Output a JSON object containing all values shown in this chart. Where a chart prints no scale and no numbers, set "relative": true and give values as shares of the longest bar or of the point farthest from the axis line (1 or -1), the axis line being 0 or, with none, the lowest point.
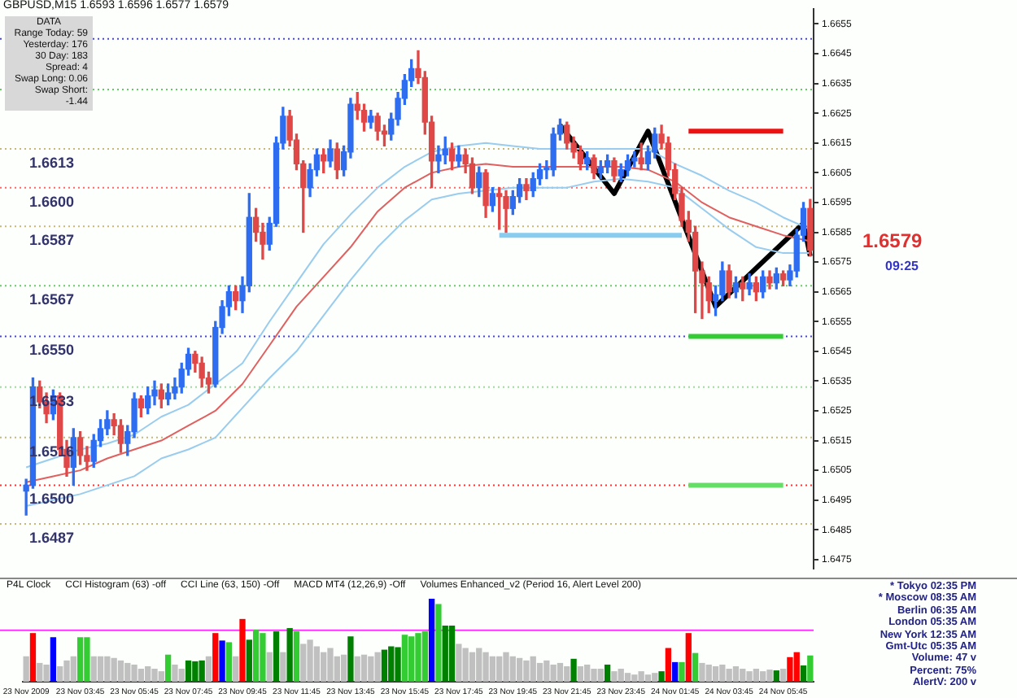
{
  "chart_data": [
    {
      "type": "candlestick",
      "title": "GBPUSD,M15 1.6593 1.6596 1.6577 1.6579",
      "categories": [
        null,
        null,
        null,
        null,
        null,
        null,
        null,
        null,
        null,
        null,
        null,
        null,
        null,
        null,
        null,
        null,
        null,
        null,
        null,
        null,
        null,
        null,
        null,
        null,
        null,
        null,
        null,
        null,
        null,
        null,
        null,
        null,
        null,
        null,
        null,
        null,
        null,
        null,
        null,
        null,
        null,
        null,
        null,
        null,
        null,
        null,
        null,
        null,
        null,
        null,
        null,
        null,
        null,
        null,
        null,
        null,
        null,
        null,
        null,
        null,
        null,
        null,
        null,
        null,
        null,
        null,
        null,
        null,
        null,
        null,
        null,
        null,
        null,
        null,
        null,
        null,
        null,
        null,
        null,
        null,
        null,
        null,
        null,
        null,
        null,
        null,
        null,
        null,
        null,
        null,
        null,
        null,
        null,
        null,
        null,
        null,
        null,
        null,
        null,
        null,
        null,
        null,
        null,
        null,
        null,
        null,
        null,
        null,
        null,
        null,
        null,
        null,
        null,
        null,
        null,
        null,
        null
      ],
      "ohlc": [
        [
          1.6498,
          1.6502,
          1.649,
          1.65
        ],
        [
          1.65,
          1.6536,
          1.6499,
          1.6533
        ],
        [
          1.6533,
          1.6535,
          1.6526,
          1.6528
        ],
        [
          1.6528,
          1.6531,
          1.6521,
          1.6524
        ],
        [
          1.6524,
          1.6532,
          1.6522,
          1.653
        ],
        [
          1.653,
          1.6531,
          1.651,
          1.6512
        ],
        [
          1.6512,
          1.6515,
          1.6503,
          1.6506
        ],
        [
          1.6506,
          1.6519,
          1.65,
          1.6516
        ],
        [
          1.6516,
          1.6518,
          1.6507,
          1.651
        ],
        [
          1.651,
          1.6513,
          1.6505,
          1.6508
        ],
        [
          1.6508,
          1.6517,
          1.6506,
          1.6515
        ],
        [
          1.6515,
          1.6522,
          1.6513,
          1.6519
        ],
        [
          1.6519,
          1.6525,
          1.6517,
          1.6522
        ],
        [
          1.6522,
          1.6524,
          1.6517,
          1.652
        ],
        [
          1.652,
          1.6522,
          1.6511,
          1.6514
        ],
        [
          1.6514,
          1.652,
          1.651,
          1.6518
        ],
        [
          1.6518,
          1.6531,
          1.6516,
          1.6529
        ],
        [
          1.6529,
          1.653,
          1.6523,
          1.6526
        ],
        [
          1.6526,
          1.6533,
          1.6524,
          1.653
        ],
        [
          1.653,
          1.6535,
          1.6527,
          1.6532
        ],
        [
          1.6532,
          1.6534,
          1.6526,
          1.6529
        ],
        [
          1.6529,
          1.6534,
          1.6527,
          1.6531
        ],
        [
          1.6531,
          1.6536,
          1.6529,
          1.6533
        ],
        [
          1.6533,
          1.6541,
          1.6531,
          1.6539
        ],
        [
          1.6539,
          1.6546,
          1.6537,
          1.6544
        ],
        [
          1.6544,
          1.6545,
          1.6538,
          1.6541
        ],
        [
          1.6541,
          1.6543,
          1.6533,
          1.6536
        ],
        [
          1.6536,
          1.6538,
          1.6531,
          1.6534
        ],
        [
          1.6534,
          1.6555,
          1.6533,
          1.6553
        ],
        [
          1.6553,
          1.6562,
          1.6551,
          1.656
        ],
        [
          1.656,
          1.6567,
          1.6557,
          1.6565
        ],
        [
          1.6565,
          1.6567,
          1.6559,
          1.6562
        ],
        [
          1.6562,
          1.657,
          1.6558,
          1.6567
        ],
        [
          1.6567,
          1.6598,
          1.6565,
          1.659
        ],
        [
          1.659,
          1.6593,
          1.6582,
          1.6585
        ],
        [
          1.6585,
          1.6588,
          1.6576,
          1.6581
        ],
        [
          1.6581,
          1.659,
          1.6579,
          1.6588
        ],
        [
          1.6588,
          1.6617,
          1.6587,
          1.6615
        ],
        [
          1.6615,
          1.6627,
          1.6613,
          1.6624
        ],
        [
          1.6624,
          1.6626,
          1.6614,
          1.6616
        ],
        [
          1.6616,
          1.6618,
          1.6606,
          1.6608
        ],
        [
          1.6608,
          1.6609,
          1.6585,
          1.66
        ],
        [
          1.66,
          1.6608,
          1.6597,
          1.6606
        ],
        [
          1.6606,
          1.6613,
          1.6604,
          1.6611
        ],
        [
          1.6611,
          1.6613,
          1.6605,
          1.6609
        ],
        [
          1.6609,
          1.6616,
          1.6607,
          1.6613
        ],
        [
          1.6613,
          1.6615,
          1.6603,
          1.6606
        ],
        [
          1.6606,
          1.6614,
          1.6604,
          1.6612
        ],
        [
          1.6612,
          1.663,
          1.661,
          1.6628
        ],
        [
          1.6628,
          1.6632,
          1.6623,
          1.6626
        ],
        [
          1.6626,
          1.6628,
          1.6619,
          1.6622
        ],
        [
          1.6622,
          1.6626,
          1.662,
          1.6624
        ],
        [
          1.6624,
          1.6625,
          1.6616,
          1.6619
        ],
        [
          1.6619,
          1.6621,
          1.6614,
          1.6618
        ],
        [
          1.6618,
          1.6625,
          1.6616,
          1.6623
        ],
        [
          1.6623,
          1.6632,
          1.6621,
          1.663
        ],
        [
          1.663,
          1.6638,
          1.6628,
          1.6636
        ],
        [
          1.6636,
          1.6643,
          1.6634,
          1.664
        ],
        [
          1.664,
          1.6646,
          1.6635,
          1.6637
        ],
        [
          1.6637,
          1.6639,
          1.6618,
          1.6622
        ],
        [
          1.6622,
          1.6624,
          1.66,
          1.6609
        ],
        [
          1.6609,
          1.6614,
          1.6605,
          1.6611
        ],
        [
          1.6611,
          1.6617,
          1.6608,
          1.6613
        ],
        [
          1.6613,
          1.6615,
          1.6606,
          1.6609
        ],
        [
          1.6609,
          1.6614,
          1.6607,
          1.6611
        ],
        [
          1.6611,
          1.6613,
          1.6605,
          1.6608
        ],
        [
          1.6608,
          1.661,
          1.6598,
          1.66
        ],
        [
          1.66,
          1.6607,
          1.6597,
          1.6605
        ],
        [
          1.6605,
          1.6606,
          1.659,
          1.6594
        ],
        [
          1.6594,
          1.66,
          1.6592,
          1.6598
        ],
        [
          1.6598,
          1.66,
          1.6586,
          1.6597
        ],
        [
          1.6597,
          1.6599,
          1.6585,
          1.6593
        ],
        [
          1.6593,
          1.6599,
          1.6591,
          1.6597
        ],
        [
          1.6597,
          1.6603,
          1.6595,
          1.6601
        ],
        [
          1.6601,
          1.6603,
          1.6596,
          1.6599
        ],
        [
          1.6599,
          1.6605,
          1.6597,
          1.6603
        ],
        [
          1.6603,
          1.6608,
          1.6601,
          1.6606
        ],
        [
          1.6606,
          1.6609,
          1.6603,
          1.6606
        ],
        [
          1.6606,
          1.662,
          1.6604,
          1.6618
        ],
        [
          1.6618,
          1.6623,
          1.6616,
          1.6621
        ],
        [
          1.6621,
          1.6622,
          1.6613,
          1.6615
        ],
        [
          1.6615,
          1.6617,
          1.661,
          1.6612
        ],
        [
          1.6612,
          1.6614,
          1.6606,
          1.6608
        ],
        [
          1.6608,
          1.6612,
          1.6606,
          1.661
        ],
        [
          1.661,
          1.6611,
          1.6603,
          1.6605
        ],
        [
          1.6605,
          1.6609,
          1.6603,
          1.6607
        ],
        [
          1.6607,
          1.6611,
          1.6605,
          1.6609
        ],
        [
          1.6609,
          1.661,
          1.6602,
          1.6604
        ],
        [
          1.6604,
          1.6608,
          1.6602,
          1.6606
        ],
        [
          1.6606,
          1.6611,
          1.6604,
          1.6609
        ],
        [
          1.6609,
          1.6612,
          1.6607,
          1.661
        ],
        [
          1.661,
          1.6615,
          1.6606,
          1.6608
        ],
        [
          1.6608,
          1.6614,
          1.6606,
          1.6612
        ],
        [
          1.6612,
          1.662,
          1.661,
          1.6618
        ],
        [
          1.6618,
          1.6621,
          1.6613,
          1.6615
        ],
        [
          1.6615,
          1.6617,
          1.6604,
          1.6606
        ],
        [
          1.6606,
          1.6608,
          1.6596,
          1.6598
        ],
        [
          1.6598,
          1.66,
          1.6587,
          1.6589
        ],
        [
          1.6589,
          1.6592,
          1.6582,
          1.6585
        ],
        [
          1.6585,
          1.6587,
          1.6558,
          1.6572
        ],
        [
          1.6572,
          1.6575,
          1.6556,
          1.6568
        ],
        [
          1.6568,
          1.657,
          1.6558,
          1.6562
        ],
        [
          1.6562,
          1.6567,
          1.6557,
          1.6564
        ],
        [
          1.6564,
          1.6575,
          1.6562,
          1.6572
        ],
        [
          1.6572,
          1.6574,
          1.6563,
          1.6565
        ],
        [
          1.6565,
          1.657,
          1.6563,
          1.6568
        ],
        [
          1.6568,
          1.657,
          1.6562,
          1.6566
        ],
        [
          1.6566,
          1.6571,
          1.6564,
          1.6568
        ],
        [
          1.6568,
          1.657,
          1.6562,
          1.6565
        ],
        [
          1.6565,
          1.6572,
          1.6563,
          1.657
        ],
        [
          1.657,
          1.6572,
          1.6566,
          1.6568
        ],
        [
          1.6568,
          1.6573,
          1.6566,
          1.6571
        ],
        [
          1.6571,
          1.6572,
          1.6567,
          1.6569
        ],
        [
          1.6569,
          1.6574,
          1.6567,
          1.6572
        ],
        [
          1.6572,
          1.6586,
          1.657,
          1.6584
        ],
        [
          1.6584,
          1.6595,
          1.6582,
          1.6593
        ],
        [
          1.6593,
          1.6596,
          1.6577,
          1.6579
        ]
      ],
      "series": [
        {
          "type": "line",
          "color": "#99ccee",
          "values": [
            1.6506,
            null,
            null,
            null,
            1.6509,
            null,
            null,
            null,
            1.6512,
            null,
            null,
            null,
            1.6514,
            null,
            null,
            null,
            1.6517,
            null,
            null,
            null,
            1.6523,
            null,
            null,
            null,
            1.6527,
            null,
            null,
            null,
            1.6534,
            null,
            null,
            null,
            1.6541,
            null,
            null,
            null,
            1.6555,
            null,
            null,
            null,
            1.6568,
            null,
            null,
            null,
            1.6581,
            null,
            null,
            null,
            1.6591,
            null,
            null,
            null,
            1.66,
            null,
            null,
            null,
            1.6607,
            null,
            null,
            null,
            1.6612,
            null,
            null,
            null,
            1.6614,
            null,
            null,
            null,
            1.6615,
            null,
            null,
            null,
            1.6614,
            null,
            null,
            null,
            1.6613,
            null,
            null,
            null,
            1.6613,
            null,
            null,
            null,
            1.6613,
            null,
            null,
            null,
            1.6613,
            null,
            null,
            null,
            1.6613,
            null,
            null,
            null,
            1.6608,
            null,
            null,
            null,
            1.6604,
            null,
            null,
            null,
            1.6599,
            null,
            null,
            null,
            1.6595,
            null,
            null,
            null,
            1.659,
            null,
            null,
            null,
            1.6586
          ]
        },
        {
          "type": "line",
          "color": "#e06060",
          "values": [
            1.6501,
            null,
            null,
            null,
            1.6503,
            null,
            null,
            null,
            1.6505,
            null,
            null,
            null,
            1.6509,
            null,
            null,
            null,
            1.6512,
            null,
            null,
            null,
            1.6515,
            null,
            null,
            null,
            1.652,
            null,
            null,
            null,
            1.6525,
            null,
            null,
            null,
            1.6534,
            null,
            null,
            null,
            1.6547,
            null,
            null,
            null,
            1.656,
            null,
            null,
            null,
            1.657,
            null,
            null,
            null,
            1.658,
            null,
            null,
            null,
            1.6592,
            null,
            null,
            null,
            1.66,
            null,
            null,
            null,
            1.6605,
            null,
            null,
            null,
            1.6607,
            null,
            null,
            null,
            1.6608,
            null,
            null,
            null,
            1.6607,
            null,
            null,
            null,
            1.6607,
            null,
            null,
            null,
            1.6607,
            null,
            null,
            null,
            1.6607,
            null,
            null,
            null,
            1.6607,
            null,
            null,
            null,
            1.6606,
            null,
            null,
            null,
            1.6602,
            null,
            null,
            null,
            1.6595,
            null,
            null,
            null,
            1.659,
            null,
            null,
            null,
            1.6587,
            null,
            null,
            null,
            1.6584,
            null,
            null,
            null,
            1.6582
          ]
        },
        {
          "type": "line",
          "color": "#99ccee",
          "values": [
            1.6493,
            null,
            null,
            null,
            1.6495,
            null,
            null,
            null,
            1.6497,
            null,
            null,
            null,
            1.65,
            null,
            null,
            null,
            1.6503,
            null,
            null,
            null,
            1.6509,
            null,
            null,
            null,
            1.6512,
            null,
            null,
            null,
            1.6516,
            null,
            null,
            null,
            1.6526,
            null,
            null,
            null,
            1.6536,
            null,
            null,
            null,
            1.6545,
            null,
            null,
            null,
            1.6557,
            null,
            null,
            null,
            1.6569,
            null,
            null,
            null,
            1.658,
            null,
            null,
            null,
            1.6589,
            null,
            null,
            null,
            1.6596,
            null,
            null,
            null,
            1.6598,
            null,
            null,
            null,
            1.6599,
            null,
            null,
            null,
            1.66,
            null,
            null,
            null,
            1.66,
            null,
            null,
            null,
            1.66,
            null,
            null,
            null,
            1.6602,
            null,
            null,
            null,
            1.6603,
            null,
            null,
            null,
            1.6602,
            null,
            null,
            null,
            1.66,
            null,
            null,
            null,
            1.6593,
            null,
            null,
            null,
            1.6586,
            null,
            null,
            null,
            1.658,
            null,
            null,
            null,
            1.6578,
            null,
            null,
            null,
            1.6578
          ]
        },
        {
          "type": "line",
          "color": "#000000",
          "values": [
            null,
            null,
            null,
            null,
            null,
            null,
            null,
            null,
            null,
            null,
            null,
            null,
            null,
            null,
            null,
            null,
            null,
            null,
            null,
            null,
            null,
            null,
            null,
            null,
            null,
            null,
            null,
            null,
            null,
            null,
            null,
            null,
            null,
            null,
            null,
            null,
            null,
            null,
            null,
            null,
            null,
            null,
            null,
            null,
            null,
            null,
            null,
            null,
            null,
            null,
            null,
            null,
            null,
            null,
            null,
            null,
            null,
            null,
            null,
            null,
            null,
            null,
            null,
            null,
            null,
            null,
            null,
            null,
            null,
            null,
            null,
            null,
            null,
            null,
            null,
            null,
            null,
            null,
            null,
            1.6621,
            null,
            null,
            null,
            null,
            null,
            null,
            null,
            1.6598,
            null,
            null,
            null,
            null,
            1.6619,
            null,
            null,
            null,
            null,
            null,
            null,
            null,
            null,
            null,
            1.656,
            null,
            null,
            null,
            null,
            null,
            null,
            null,
            null,
            null,
            null,
            null,
            null,
            1.6588,
            1.6577
          ]
        },
        {
          "type": "line",
          "color": "#ee1111",
          "values": [
            null,
            null,
            null,
            null,
            null,
            null,
            null,
            null,
            null,
            null,
            null,
            null,
            null,
            null,
            null,
            null,
            null,
            null,
            null,
            null,
            null,
            null,
            null,
            null,
            null,
            null,
            null,
            null,
            null,
            null,
            null,
            null,
            null,
            null,
            null,
            null,
            null,
            null,
            null,
            null,
            null,
            null,
            null,
            null,
            null,
            null,
            null,
            null,
            null,
            null,
            null,
            null,
            null,
            null,
            null,
            null,
            null,
            null,
            null,
            null,
            null,
            null,
            null,
            null,
            null,
            null,
            null,
            null,
            null,
            null,
            null,
            null,
            null,
            null,
            null,
            null,
            null,
            null,
            null,
            null,
            null,
            null,
            null,
            null,
            null,
            null,
            null,
            null,
            null,
            null,
            null,
            null,
            null,
            null,
            null,
            null,
            null,
            null,
            1.6619,
            null,
            null,
            null,
            null,
            null,
            null,
            null,
            null,
            null,
            null,
            null,
            null,
            null,
            1.6619,
            null,
            null,
            null,
            null
          ]
        },
        {
          "type": "line",
          "color": "#33cc33",
          "values": [
            null,
            null,
            null,
            null,
            null,
            null,
            null,
            null,
            null,
            null,
            null,
            null,
            null,
            null,
            null,
            null,
            null,
            null,
            null,
            null,
            null,
            null,
            null,
            null,
            null,
            null,
            null,
            null,
            null,
            null,
            null,
            null,
            null,
            null,
            null,
            null,
            null,
            null,
            null,
            null,
            null,
            null,
            null,
            null,
            null,
            null,
            null,
            null,
            null,
            null,
            null,
            null,
            null,
            null,
            null,
            null,
            null,
            null,
            null,
            null,
            null,
            null,
            null,
            null,
            null,
            null,
            null,
            null,
            null,
            null,
            null,
            null,
            null,
            null,
            null,
            null,
            null,
            null,
            null,
            null,
            null,
            null,
            null,
            null,
            null,
            null,
            null,
            null,
            null,
            null,
            null,
            null,
            null,
            null,
            null,
            null,
            null,
            null,
            1.655,
            null,
            null,
            null,
            null,
            null,
            null,
            null,
            null,
            null,
            null,
            null,
            null,
            null,
            1.655,
            null,
            null,
            null,
            null
          ]
        },
        {
          "type": "line",
          "color": "#66dd66",
          "values": [
            null,
            null,
            null,
            null,
            null,
            null,
            null,
            null,
            null,
            null,
            null,
            null,
            null,
            null,
            null,
            null,
            null,
            null,
            null,
            null,
            null,
            null,
            null,
            null,
            null,
            null,
            null,
            null,
            null,
            null,
            null,
            null,
            null,
            null,
            null,
            null,
            null,
            null,
            null,
            null,
            null,
            null,
            null,
            null,
            null,
            null,
            null,
            null,
            null,
            null,
            null,
            null,
            null,
            null,
            null,
            null,
            null,
            null,
            null,
            null,
            null,
            null,
            null,
            null,
            null,
            null,
            null,
            null,
            null,
            null,
            null,
            null,
            null,
            null,
            null,
            null,
            null,
            null,
            null,
            null,
            null,
            null,
            null,
            null,
            null,
            null,
            null,
            null,
            null,
            null,
            null,
            null,
            null,
            null,
            null,
            null,
            null,
            null,
            1.65,
            null,
            null,
            null,
            null,
            null,
            null,
            null,
            null,
            null,
            null,
            null,
            null,
            null,
            1.65,
            null,
            null,
            null,
            null
          ]
        },
        {
          "type": "line",
          "color": "#88ccf0",
          "values": [
            null,
            null,
            null,
            null,
            null,
            null,
            null,
            null,
            null,
            null,
            null,
            null,
            null,
            null,
            null,
            null,
            null,
            null,
            null,
            null,
            null,
            null,
            null,
            null,
            null,
            null,
            null,
            null,
            null,
            null,
            null,
            null,
            null,
            null,
            null,
            null,
            null,
            null,
            null,
            null,
            null,
            null,
            null,
            null,
            null,
            null,
            null,
            null,
            null,
            null,
            null,
            null,
            null,
            null,
            null,
            null,
            null,
            null,
            null,
            null,
            null,
            null,
            null,
            null,
            null,
            null,
            null,
            null,
            null,
            null,
            1.6584,
            null,
            null,
            null,
            null,
            null,
            null,
            null,
            null,
            null,
            null,
            null,
            null,
            null,
            null,
            null,
            null,
            null,
            null,
            null,
            null,
            null,
            null,
            null,
            null,
            null,
            null,
            1.6584,
            null,
            null,
            null,
            null,
            null,
            null,
            null,
            null,
            null,
            null,
            null,
            null,
            null,
            null,
            null,
            null,
            null,
            null,
            null
          ]
        }
      ],
      "ylim": [
        1.6472,
        1.666
      ],
      "yticks": [
        1.6655,
        1.6645,
        1.6635,
        1.6625,
        1.6615,
        1.6605,
        1.6595,
        1.6585,
        1.6575,
        1.6565,
        1.6555,
        1.6545,
        1.6535,
        1.6525,
        1.6515,
        1.6505,
        1.6495,
        1.6485,
        1.6475
      ],
      "tick_labels": "y",
      "ref_lines": [
        {
          "axis": "y",
          "value": 1.665,
          "color": "#4444ee",
          "line_style": "dotted"
        },
        {
          "axis": "y",
          "value": 1.6633,
          "color": "#66cc66",
          "line_style": "dotted"
        },
        {
          "axis": "y",
          "value": 1.6613,
          "color": "#c8b878",
          "line_style": "dotted",
          "label": "1.6613"
        },
        {
          "axis": "y",
          "value": 1.66,
          "color": "#ff6666",
          "line_style": "dotted",
          "label": "1.6600"
        },
        {
          "axis": "y",
          "value": 1.6587,
          "color": "#c8b878",
          "line_style": "dotted",
          "label": "1.6587"
        },
        {
          "axis": "y",
          "value": 1.6567,
          "color": "#66cc66",
          "line_style": "dotted",
          "label": "1.6567"
        },
        {
          "axis": "y",
          "value": 1.655,
          "color": "#4444ee",
          "line_style": "dotted",
          "label": "1.6550"
        },
        {
          "axis": "y",
          "value": 1.6533,
          "color": "#99dd99",
          "line_style": "dotted",
          "label": "1.6533"
        },
        {
          "axis": "y",
          "value": 1.6516,
          "color": "#c8b878",
          "line_style": "dotted",
          "label": "1.6516"
        },
        {
          "axis": "y",
          "value": 1.65,
          "color": "#ff3333",
          "line_style": "dotted",
          "label": "1.6500"
        },
        {
          "axis": "y",
          "value": 1.6487,
          "color": "#c8b878",
          "line_style": "dotted",
          "label": "1.6487"
        }
      ],
      "annotations": [
        "1.6579",
        "09:25"
      ]
    },
    {
      "type": "other",
      "annotations": [
        "DATA",
        "Range Today: 59",
        "Yesterday: 176",
        "30 Day: 183",
        "Spread: 4",
        "Swap Long: 0.06",
        "Swap Short: -1.44"
      ]
    },
    {
      "type": "bar",
      "relative": true,
      "tick_labels": "x",
      "categories": [
        "23 Nov 2009",
        null,
        null,
        null,
        null,
        null,
        null,
        null,
        "23 Nov 03:45",
        null,
        null,
        null,
        null,
        null,
        null,
        null,
        "23 Nov 05:45",
        null,
        null,
        null,
        null,
        null,
        null,
        null,
        "23 Nov 07:45",
        null,
        null,
        null,
        null,
        null,
        null,
        null,
        "23 Nov 09:45",
        null,
        null,
        null,
        null,
        null,
        null,
        null,
        "23 Nov 11:45",
        null,
        null,
        null,
        null,
        null,
        null,
        null,
        "23 Nov 13:45",
        null,
        null,
        null,
        null,
        null,
        null,
        null,
        "23 Nov 15:45",
        null,
        null,
        null,
        null,
        null,
        null,
        null,
        "23 Nov 17:45",
        null,
        null,
        null,
        null,
        null,
        null,
        null,
        "23 Nov 19:45",
        null,
        null,
        null,
        null,
        null,
        null,
        null,
        "23 Nov 21:45",
        null,
        null,
        null,
        null,
        null,
        null,
        null,
        "23 Nov 23:45",
        null,
        null,
        null,
        null,
        null,
        null,
        null,
        "24 Nov 01:45",
        null,
        null,
        null,
        null,
        null,
        null,
        null,
        "24 Nov 03:45",
        null,
        null,
        null,
        null,
        null,
        null,
        null,
        "24 Nov 05:45",
        null,
        null,
        null,
        null
      ],
      "values": [
        0.3,
        0.58,
        0.22,
        0.2,
        0.53,
        0.18,
        0.25,
        0.3,
        0.53,
        0.53,
        0.3,
        0.3,
        0.3,
        0.28,
        0.25,
        0.22,
        0.2,
        0.15,
        0.18,
        0.15,
        0.12,
        0.32,
        0.2,
        0.15,
        0.25,
        0.24,
        0.25,
        0.3,
        0.58,
        0.49,
        0.47,
        0.3,
        0.75,
        0.5,
        0.62,
        0.58,
        0.35,
        0.6,
        0.35,
        0.64,
        0.6,
        0.45,
        0.5,
        0.42,
        0.35,
        0.4,
        0.3,
        0.32,
        0.54,
        0.3,
        0.32,
        0.3,
        0.35,
        0.38,
        0.42,
        0.41,
        0.56,
        0.54,
        0.58,
        0.6,
        1,
        0.93,
        0.67,
        0.67,
        0.45,
        0.4,
        0.35,
        0.4,
        0.35,
        0.3,
        0.3,
        0.35,
        0.3,
        0.28,
        0.25,
        0.3,
        0.22,
        0.25,
        0.2,
        0.22,
        0.18,
        0.27,
        0.18,
        0.2,
        0.15,
        0.15,
        0.2,
        0.12,
        0.15,
        0.1,
        0.08,
        0.12,
        0.08,
        0.1,
        0.12,
        0.4,
        0.23,
        0.23,
        0.58,
        0.34,
        0.22,
        0.2,
        0.18,
        0.2,
        0.15,
        0.18,
        0.15,
        0.12,
        0.15,
        0.12,
        0.14,
        0.13,
        0.15,
        0.29,
        0.35,
        0.19,
        0.31
      ],
      "colors": [
        "#c0c0c0",
        "#ff0000",
        "#c0c0c0",
        "#c0c0c0",
        "#0000ff",
        "#c0c0c0",
        "#c0c0c0",
        "#c0c0c0",
        "#33cc33",
        "#33cc33",
        "#c0c0c0",
        "#c0c0c0",
        "#c0c0c0",
        "#c0c0c0",
        "#c0c0c0",
        "#c0c0c0",
        "#c0c0c0",
        "#c0c0c0",
        "#c0c0c0",
        "#c0c0c0",
        "#c0c0c0",
        "#33cc33",
        "#c0c0c0",
        "#c0c0c0",
        "#008000",
        "#008000",
        "#008000",
        "#c0c0c0",
        "#ff0000",
        "#0000ff",
        "#33cc33",
        "#c0c0c0",
        "#ff0000",
        "#008000",
        "#33cc33",
        "#33cc33",
        "#c0c0c0",
        "#008000",
        "#c0c0c0",
        "#008000",
        "#33cc33",
        "#c0c0c0",
        "#c0c0c0",
        "#c0c0c0",
        "#c0c0c0",
        "#c0c0c0",
        "#c0c0c0",
        "#c0c0c0",
        "#008000",
        "#c0c0c0",
        "#c0c0c0",
        "#c0c0c0",
        "#c0c0c0",
        "#008000",
        "#008000",
        "#008000",
        "#33cc33",
        "#33cc33",
        "#33cc33",
        "#33cc33",
        "#0000ff",
        "#33cc33",
        "#008000",
        "#008000",
        "#c0c0c0",
        "#c0c0c0",
        "#c0c0c0",
        "#c0c0c0",
        "#c0c0c0",
        "#c0c0c0",
        "#c0c0c0",
        "#c0c0c0",
        "#c0c0c0",
        "#c0c0c0",
        "#c0c0c0",
        "#c0c0c0",
        "#c0c0c0",
        "#c0c0c0",
        "#c0c0c0",
        "#c0c0c0",
        "#c0c0c0",
        "#008000",
        "#c0c0c0",
        "#c0c0c0",
        "#c0c0c0",
        "#c0c0c0",
        "#008000",
        "#c0c0c0",
        "#c0c0c0",
        "#c0c0c0",
        "#c0c0c0",
        "#c0c0c0",
        "#c0c0c0",
        "#c0c0c0",
        "#008000",
        "#ff0000",
        "#0000ff",
        "#33cc33",
        "#ff0000",
        "#33cc33",
        "#c0c0c0",
        "#c0c0c0",
        "#c0c0c0",
        "#c0c0c0",
        "#c0c0c0",
        "#c0c0c0",
        "#c0c0c0",
        "#c0c0c0",
        "#c0c0c0",
        "#c0c0c0",
        "#c0c0c0",
        "#008000",
        "#c0c0c0",
        "#ff0000",
        "#ff0000",
        "#008000",
        "#33cc33"
      ],
      "ref_lines": [
        {
          "axis": "y",
          "value": 0.62,
          "color": "#ff33ff"
        }
      ],
      "annotations": [
        "P4L Clock",
        "CCI Histogram (63) -off",
        "CCI Line (63, 150) -Off",
        "MACD MT4 (12,26,9) -Off",
        "Volumes Enhanced_v2 (Period 16, Alert Level 200)"
      ]
    },
    {
      "type": "other",
      "annotations": [
        "* Tokyo 02:35 PM",
        "* Moscow 08:35 AM",
        "Berlin 06:35 AM",
        "London 05:35 AM",
        "New York 12:35 AM",
        "Gmt-Utc 05:35 AM",
        "Volume: 47 v",
        "Percent: 75%",
        "AlertV: 200 v"
      ]
    }
  ]
}
